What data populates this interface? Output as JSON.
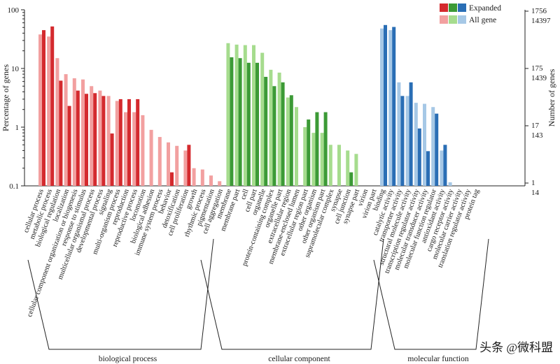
{
  "chart_data": {
    "type": "bar",
    "ylabel": "Percentage of genes",
    "ylabel_right": "Number of genes",
    "yscale": "log",
    "ylim": [
      0.1,
      100
    ],
    "left_ticks": [
      "100",
      "10",
      "1",
      "0.1"
    ],
    "right_ticks": [
      {
        "blue": "1756",
        "black": "14397"
      },
      {
        "blue": "175",
        "black": "1439"
      },
      {
        "blue": "17",
        "black": "143"
      },
      {
        "blue": "1",
        "black": "14"
      }
    ],
    "legend": {
      "expanded": "Expanded",
      "all_gene": "All gene",
      "position": "top-right"
    },
    "categories": [
      "cellular process",
      "metabolic process",
      "biological regulation",
      "localization",
      "cellular component organization or biogenesis",
      "response to stimulus",
      "multicellular organismal process",
      "developmental process",
      "signaling",
      "multi-organism process",
      "reproduction",
      "reproductive process",
      "locomotion",
      "biological adhesion",
      "immune system process",
      "behavior",
      "detoxification",
      "cell proliferation",
      "growth",
      "rhythmic process",
      "pigmentation",
      "cell aggregation",
      "membrane",
      "membrane part",
      "cell",
      "cell part",
      "organelle",
      "protein-containing complex",
      "organelle part",
      "extracellular region",
      "membrane-enclosed lumen",
      "extracellular region part",
      "other organism",
      "other organism part",
      "supramolecular complex",
      "synapse",
      "cell junction",
      "synapse part",
      "virion",
      "virion part",
      "binding",
      "catalytic activity",
      "transporter activity",
      "structural molecule activity",
      "transcription regulator activity",
      "molecular transducer activity",
      "molecular function regulator",
      "antioxidant activity",
      "cargo receptor activity",
      "molecular carrier activity",
      "translation regulator activity",
      "protein tag"
    ],
    "groups": [
      {
        "name": "biological process",
        "start": 0,
        "count": 22,
        "expanded_color": "#d42a2e",
        "all_color": "#f2a0a0"
      },
      {
        "name": "cellular component",
        "start": 22,
        "count": 18,
        "expanded_color": "#3c9a36",
        "all_color": "#a6dc8e"
      },
      {
        "name": "molecular function",
        "start": 40,
        "count": 12,
        "expanded_color": "#2a6eb5",
        "all_color": "#a6c8e6"
      }
    ],
    "series": [
      {
        "name": "All gene",
        "values": [
          38,
          35,
          15,
          8,
          6.8,
          6.5,
          5,
          4.2,
          3.4,
          2.8,
          1.8,
          1.8,
          1.6,
          0.9,
          0.68,
          0.55,
          0.48,
          0.4,
          0.2,
          0.19,
          0.15,
          0.12,
          27,
          25.5,
          25,
          25,
          18.5,
          9.5,
          8.5,
          3.2,
          2.2,
          1.0,
          0.8,
          0.8,
          0.5,
          0.5,
          0.4,
          0.35,
          0,
          0,
          48,
          45,
          5.8,
          3.4,
          2.6,
          2.5,
          2.2,
          0.4,
          0.115,
          0,
          0,
          0
        ]
      },
      {
        "name": "Expanded",
        "values": [
          45,
          52,
          6.2,
          2.3,
          4.2,
          3.7,
          3.8,
          3.4,
          0.78,
          3.0,
          3.0,
          3.0,
          0,
          0,
          0,
          0.17,
          0,
          0.5,
          0,
          0,
          0,
          0,
          15.5,
          15,
          12.5,
          12.5,
          7.2,
          5.0,
          5.8,
          3.5,
          0,
          1.35,
          1.8,
          1.8,
          0,
          0,
          0.17,
          0,
          0,
          0,
          55,
          51,
          3.4,
          5.8,
          0.95,
          0.39,
          1.7,
          0.5,
          0,
          0,
          0,
          0
        ]
      }
    ]
  },
  "watermark": "头条 @微科盟"
}
